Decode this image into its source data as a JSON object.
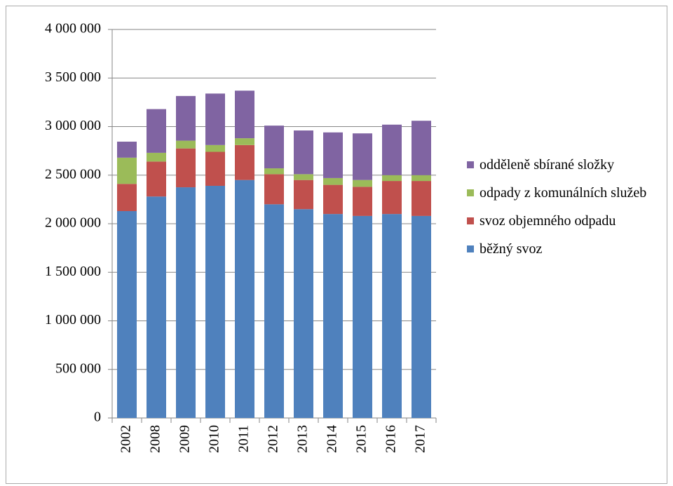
{
  "chart_data": {
    "type": "stacked-bar",
    "categories": [
      "2002",
      "2008",
      "2009",
      "2010",
      "2011",
      "2012",
      "2013",
      "2014",
      "2015",
      "2016",
      "2017"
    ],
    "series": [
      {
        "name": "běžný svoz",
        "color": "#4f81bd",
        "values": [
          2130000,
          2280000,
          2375000,
          2390000,
          2450000,
          2200000,
          2150000,
          2100000,
          2080000,
          2100000,
          2080000
        ]
      },
      {
        "name": "svoz objemného odpadu",
        "color": "#c0504d",
        "values": [
          280000,
          360000,
          400000,
          350000,
          360000,
          310000,
          300000,
          300000,
          300000,
          340000,
          360000
        ]
      },
      {
        "name": "odpady z komunálních služeb",
        "color": "#9bbb59",
        "values": [
          270000,
          90000,
          80000,
          70000,
          70000,
          60000,
          60000,
          70000,
          70000,
          60000,
          60000
        ]
      },
      {
        "name": "odděleně sbírané složky",
        "color": "#8064a2",
        "values": [
          165000,
          450000,
          460000,
          530000,
          490000,
          440000,
          450000,
          470000,
          480000,
          520000,
          560000
        ]
      }
    ],
    "ylim": [
      0,
      4000000
    ],
    "yticks": [
      0,
      {
        "value": 500000,
        "label": "500 000"
      },
      {
        "value": 1000000,
        "label": "1 000 000"
      },
      {
        "value": 1500000,
        "label": "1 500 000"
      },
      {
        "value": 2000000,
        "label": "2 000 000"
      },
      {
        "value": 2500000,
        "label": "2 500 000"
      },
      {
        "value": 3000000,
        "label": "3 000 000"
      },
      {
        "value": 3500000,
        "label": "3 500 000"
      },
      {
        "value": 4000000,
        "label": "4 000 000"
      }
    ],
    "grid": true,
    "legend": "right"
  }
}
